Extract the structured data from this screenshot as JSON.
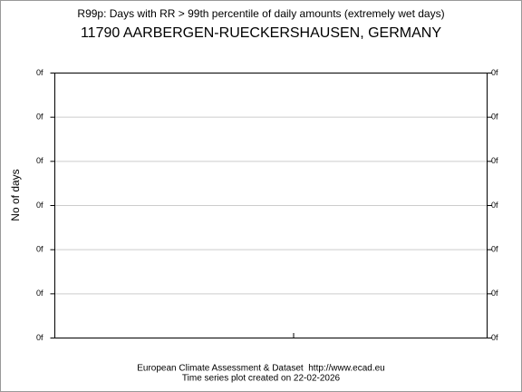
{
  "chart_data": {
    "type": "line",
    "title": "R99p: Days with RR > 99th percentile of daily amounts (extremely wet days)",
    "subtitle": "11790 AARBERGEN-RUECKERSHAUSEN, GERMANY",
    "ylabel": "No of days",
    "ylim": [
      0,
      6
    ],
    "yticks": [
      {
        "value": 0,
        "label": "0f"
      },
      {
        "value": 1,
        "label": "0f"
      },
      {
        "value": 2,
        "label": "0f"
      },
      {
        "value": 3,
        "label": "0f"
      },
      {
        "value": 4,
        "label": "0f"
      },
      {
        "value": 5,
        "label": "0f"
      },
      {
        "value": 6,
        "label": "0f"
      }
    ],
    "grid": true,
    "footer": [
      "European Climate Assessment & Dataset  http://www.ecad.eu",
      "Time series plot created on 22-02-2026"
    ]
  }
}
